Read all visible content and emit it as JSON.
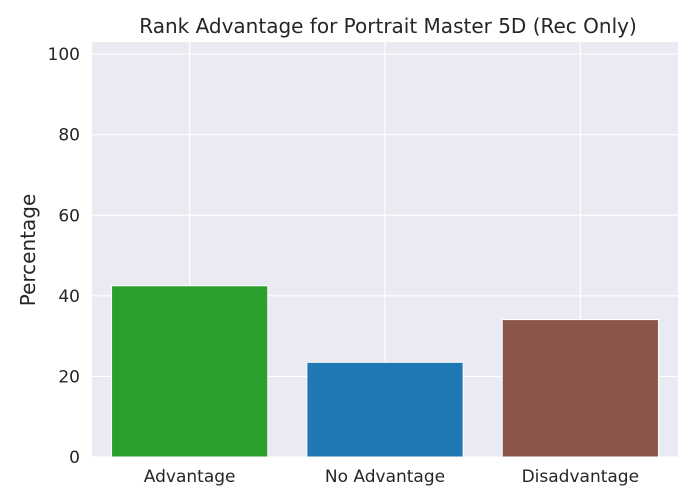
{
  "chart_data": {
    "type": "bar",
    "title": "Rank Advantage for Portrait Master 5D (Rec Only)",
    "xlabel": "",
    "ylabel": "Percentage",
    "categories": [
      "Advantage",
      "No Advantage",
      "Disadvantage"
    ],
    "values": [
      42.5,
      23.5,
      34.1
    ],
    "colors": [
      "#2ca02c",
      "#1f77b4",
      "#8c564b"
    ],
    "ylim": [
      0,
      103
    ],
    "yticks": [
      0,
      20,
      40,
      60,
      80,
      100
    ],
    "grid": true,
    "background": "#eaeaf2"
  }
}
